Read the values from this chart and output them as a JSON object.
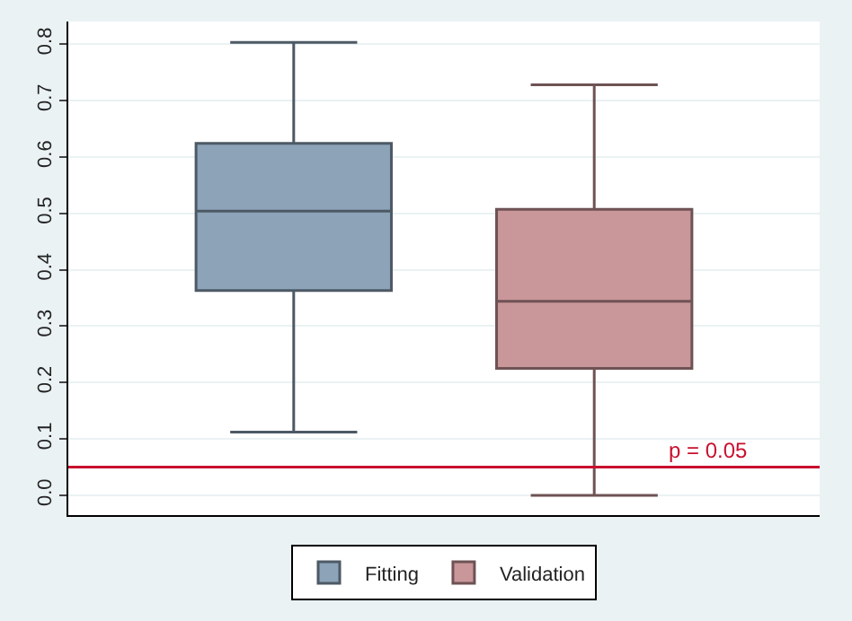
{
  "chart_data": {
    "type": "box",
    "categories": [
      null
    ],
    "series": [
      {
        "name": "Fitting",
        "color": "#8ca3b8",
        "boxes": [
          {
            "low": 0.112,
            "q1": 0.363,
            "median": 0.504,
            "q3": 0.624,
            "high": 0.803
          }
        ]
      },
      {
        "name": "Validation",
        "color": "#c9969a",
        "boxes": [
          {
            "low": 0.0,
            "q1": 0.225,
            "median": 0.344,
            "q3": 0.507,
            "high": 0.728
          }
        ]
      }
    ],
    "ylim": [
      -0.035,
      0.84
    ],
    "yticks": [
      {
        "value": 0,
        "label": "0.0"
      },
      0.1,
      0.2,
      0.3,
      0.4,
      0.5,
      0.6,
      0.7,
      0.8
    ],
    "ref_lines": [
      {
        "axis": "y",
        "value": 0.05,
        "label": "p = 0.05",
        "color": "#c8102e"
      }
    ],
    "grid": "y",
    "legend": "bottom",
    "tick_labels": "y"
  }
}
